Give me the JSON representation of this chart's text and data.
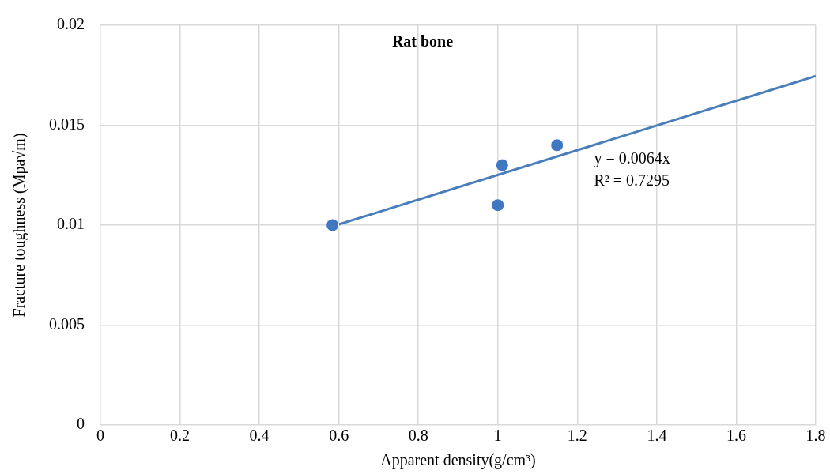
{
  "chart_data": {
    "type": "scatter",
    "title": "Rat bone",
    "xlabel": "Apparent density(g/cm³)",
    "ylabel": "Fracture toughness (Mpa√m)",
    "annotations": [
      "y = 0.0064x",
      "R² = 0.7295"
    ],
    "series": [
      {
        "type": "scatter",
        "color": "#3f78c1",
        "x": [
          0.584,
          1.0,
          1.011,
          1.149
        ],
        "values": [
          0.01,
          0.011,
          0.013,
          0.014
        ],
        "marker": "circle"
      },
      {
        "type": "line",
        "color": "#4a7ebb",
        "x": [
          0.584,
          1.8
        ],
        "values": [
          0.00994,
          0.01746
        ],
        "marker": "none",
        "line_style": "solid"
      }
    ],
    "xlim": [
      0,
      1.8
    ],
    "xticks": [
      0,
      0.2,
      0.4,
      0.6,
      0.8,
      1,
      1.2,
      1.4,
      1.6,
      1.8
    ],
    "ylim": [
      0,
      0.02
    ],
    "yticks": [
      0,
      0.005,
      0.01,
      0.015,
      0.02
    ],
    "grid": true,
    "legend": false
  }
}
